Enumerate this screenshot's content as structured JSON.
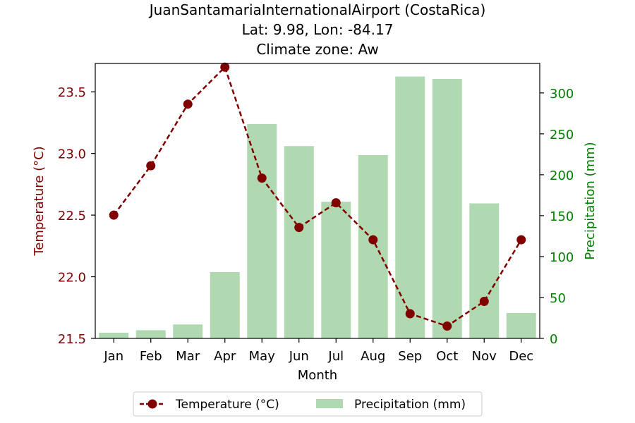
{
  "chart_data": {
    "type": "bar+line",
    "title_lines": [
      "JuanSantamariaInternationalAirport (CostaRica)",
      "Lat: 9.98, Lon: -84.17",
      "Climate zone: Aw"
    ],
    "xlabel": "Month",
    "categories": [
      "Jan",
      "Feb",
      "Mar",
      "Apr",
      "May",
      "Jun",
      "Jul",
      "Aug",
      "Sep",
      "Oct",
      "Nov",
      "Dec"
    ],
    "temperature": {
      "name": "Temperature (°C)",
      "axis_label": "Temperature (°C)",
      "color": "#800000",
      "values": [
        22.5,
        22.9,
        23.4,
        23.7,
        22.8,
        22.4,
        22.6,
        22.3,
        21.7,
        21.6,
        21.8,
        22.3
      ],
      "ylim": [
        21.5,
        23.73
      ],
      "ticks": [
        21.5,
        22.0,
        22.5,
        23.0,
        23.5
      ],
      "tick_labels": [
        "21.5",
        "22.0",
        "22.5",
        "23.0",
        "23.5"
      ]
    },
    "precipitation": {
      "name": "Precipitation (mm)",
      "axis_label": "Precipitation (mm)",
      "color": "#b0d9b1",
      "axis_color": "#008000",
      "values": [
        7,
        10,
        17,
        81,
        262,
        235,
        167,
        224,
        320,
        317,
        165,
        31
      ],
      "ylim": [
        0,
        336
      ],
      "ticks": [
        0,
        50,
        100,
        150,
        200,
        250,
        300
      ],
      "tick_labels": [
        "0",
        "50",
        "100",
        "150",
        "200",
        "250",
        "300"
      ]
    },
    "legend_position": "bottom-center",
    "grid": false
  }
}
